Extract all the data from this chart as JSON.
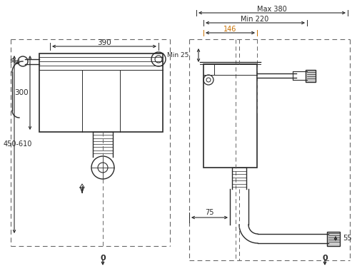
{
  "bg_color": "#ffffff",
  "line_color": "#2a2a2a",
  "dim_color": "#2a2a2a",
  "orange_color": "#c87000",
  "dashed_color": "#666666",
  "left_view": {
    "label_390": "390",
    "label_300": "300",
    "label_450": "450-610",
    "label_0": "0"
  },
  "right_view": {
    "label_max380": "Max 380",
    "label_min220": "Min 220",
    "label_146": "146",
    "label_min25": "Min 25",
    "label_75": "75",
    "label_55": "55",
    "label_0": "0"
  }
}
